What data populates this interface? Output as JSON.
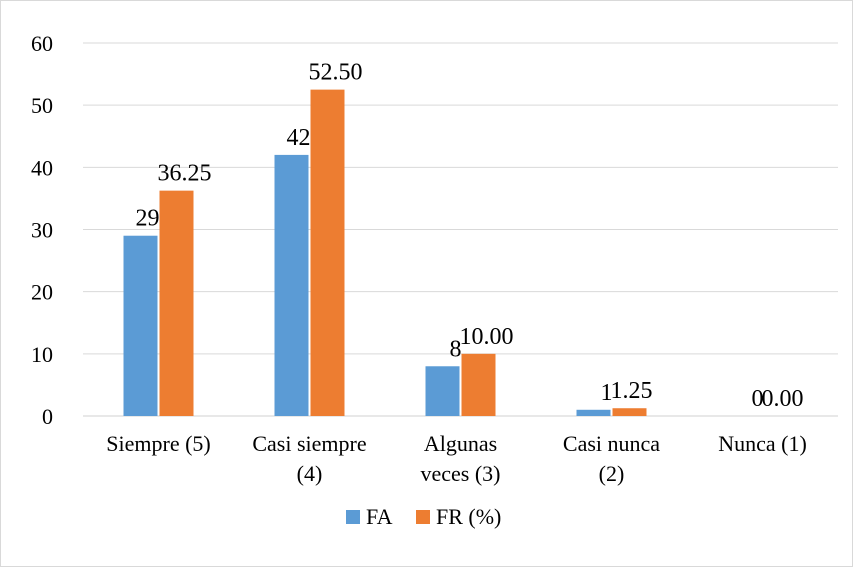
{
  "chart_data": {
    "type": "bar",
    "categories": [
      [
        "Siempre  (5)"
      ],
      [
        "Casi siempre",
        "(4)"
      ],
      [
        "Algunas",
        "veces (3)"
      ],
      [
        "Casi nunca",
        "(2)"
      ],
      [
        "Nunca  (1)"
      ]
    ],
    "series": [
      {
        "name": "FA",
        "values": [
          29,
          42,
          8,
          1,
          0
        ],
        "labels": [
          "29",
          "42",
          "8",
          "1",
          "0"
        ],
        "color": "#5b9bd5"
      },
      {
        "name": "FR (%)",
        "values": [
          36.25,
          52.5,
          10.0,
          1.25,
          0.0
        ],
        "labels": [
          "36.25",
          "52.50",
          "10.00",
          "1.25",
          "0.00"
        ],
        "color": "#ed7d31"
      }
    ],
    "ylim": [
      0,
      60
    ],
    "yticks": [
      0,
      10,
      20,
      30,
      40,
      50,
      60
    ],
    "grid": true,
    "legend": "bottom",
    "title": "",
    "xlabel": "",
    "ylabel": ""
  }
}
